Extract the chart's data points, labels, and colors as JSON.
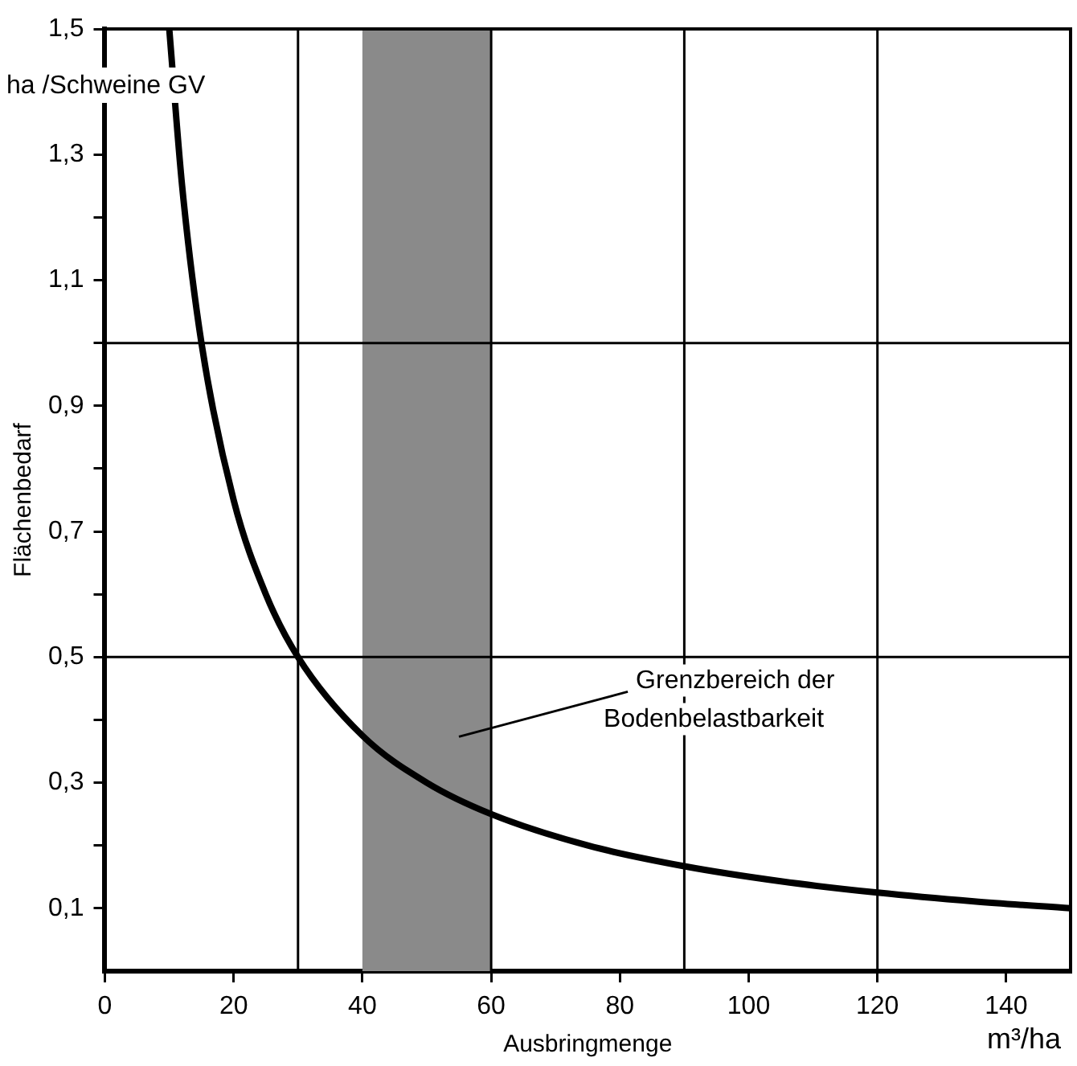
{
  "chart_data": {
    "type": "line",
    "xlabel": "Ausbringmenge",
    "ylabel": "Flächenbedarf",
    "annotations": [
      "ha /Schweine GV",
      "m³/ha"
    ],
    "xlim": [
      0,
      150
    ],
    "xticks": [
      0,
      20,
      40,
      60,
      80,
      100,
      120,
      140
    ],
    "ylim": [
      0,
      1.5
    ],
    "yticks": [
      {
        "value": 0.1,
        "label": "0,1"
      },
      {
        "value": 0.2,
        "label": null
      },
      {
        "value": 0.3,
        "label": "0,3"
      },
      {
        "value": 0.4,
        "label": null
      },
      {
        "value": 0.5,
        "label": "0,5"
      },
      {
        "value": 0.6,
        "label": null
      },
      {
        "value": 0.7,
        "label": "0,7"
      },
      {
        "value": 0.8,
        "label": null
      },
      {
        "value": 0.9,
        "label": "0,9"
      },
      {
        "value": 1.0,
        "label": null
      },
      {
        "value": 1.1,
        "label": "1,1"
      },
      {
        "value": 1.2,
        "label": null
      },
      {
        "value": 1.3,
        "label": "1,3"
      },
      {
        "value": 1.4,
        "label": null
      },
      {
        "value": 1.5,
        "label": "1,5"
      }
    ],
    "grid": false,
    "legend": false,
    "marker": "none",
    "line_style": "solid",
    "series": [
      {
        "color": "#000000",
        "x": [
          10,
          12,
          15,
          20,
          25,
          30,
          40,
          50,
          60,
          75,
          90,
          105,
          120,
          135,
          150
        ],
        "values": [
          1.5,
          1.25,
          1.0,
          0.75,
          0.6,
          0.5,
          0.375,
          0.3,
          0.25,
          0.2,
          0.167,
          0.143,
          0.125,
          0.111,
          0.1
        ]
      }
    ],
    "ref_lines": [
      {
        "axis": "x",
        "value": 30,
        "color": "#000000"
      },
      {
        "axis": "x",
        "value": 60,
        "color": "#000000"
      },
      {
        "axis": "x",
        "value": 90,
        "color": "#000000"
      },
      {
        "axis": "x",
        "value": 120,
        "color": "#000000"
      },
      {
        "axis": "y",
        "value": 0.5,
        "color": "#000000"
      },
      {
        "axis": "y",
        "value": 1.0,
        "color": "#000000"
      }
    ],
    "bands": [
      {
        "axis": "x",
        "from": 40,
        "to": 60,
        "label": "Grenzbereich der Bodenbelastbarkeit",
        "color": "#8a8a8a"
      }
    ]
  }
}
